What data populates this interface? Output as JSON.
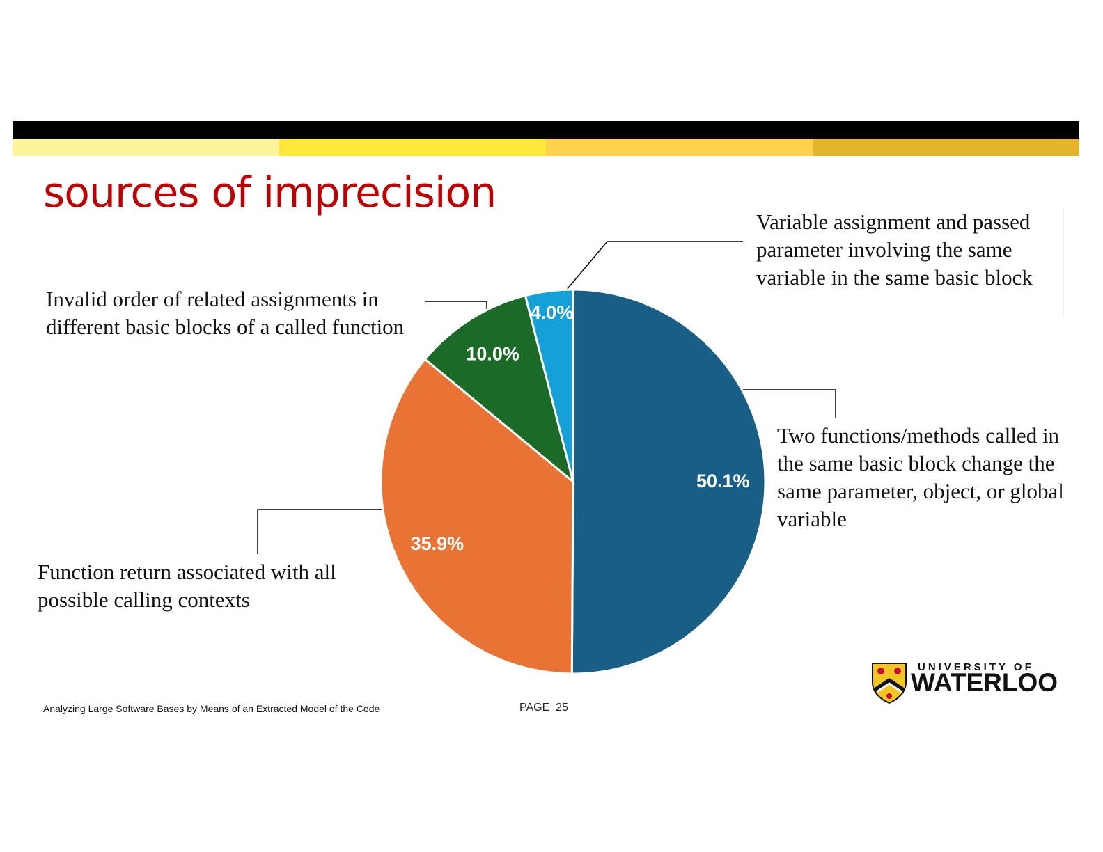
{
  "slide": {
    "title": "sources of imprecision",
    "footer": "Analyzing Large Software Bases by Means of an Extracted Model of the Code",
    "page_label": "PAGE",
    "page_number": 25,
    "logo_top": "UNIVERSITY OF",
    "logo_bottom": "WATERLOO"
  },
  "chart_data": {
    "type": "pie",
    "categories": [
      "Two functions/methods called in the same basic block change the same parameter, object, or global variable",
      "Function return associated with all possible calling contexts",
      "Invalid order of related assignments in different basic blocks of a called function",
      "Variable assignment and passed parameter involving the same variable in the same basic block"
    ],
    "values": [
      50.1,
      35.9,
      10.0,
      4.0
    ],
    "value_labels": [
      "50.1%",
      "35.9%",
      "10.0%",
      "4.0%"
    ],
    "colors": [
      "#195f85",
      "#e87334",
      "#1c6a27",
      "#16a0d8"
    ]
  }
}
